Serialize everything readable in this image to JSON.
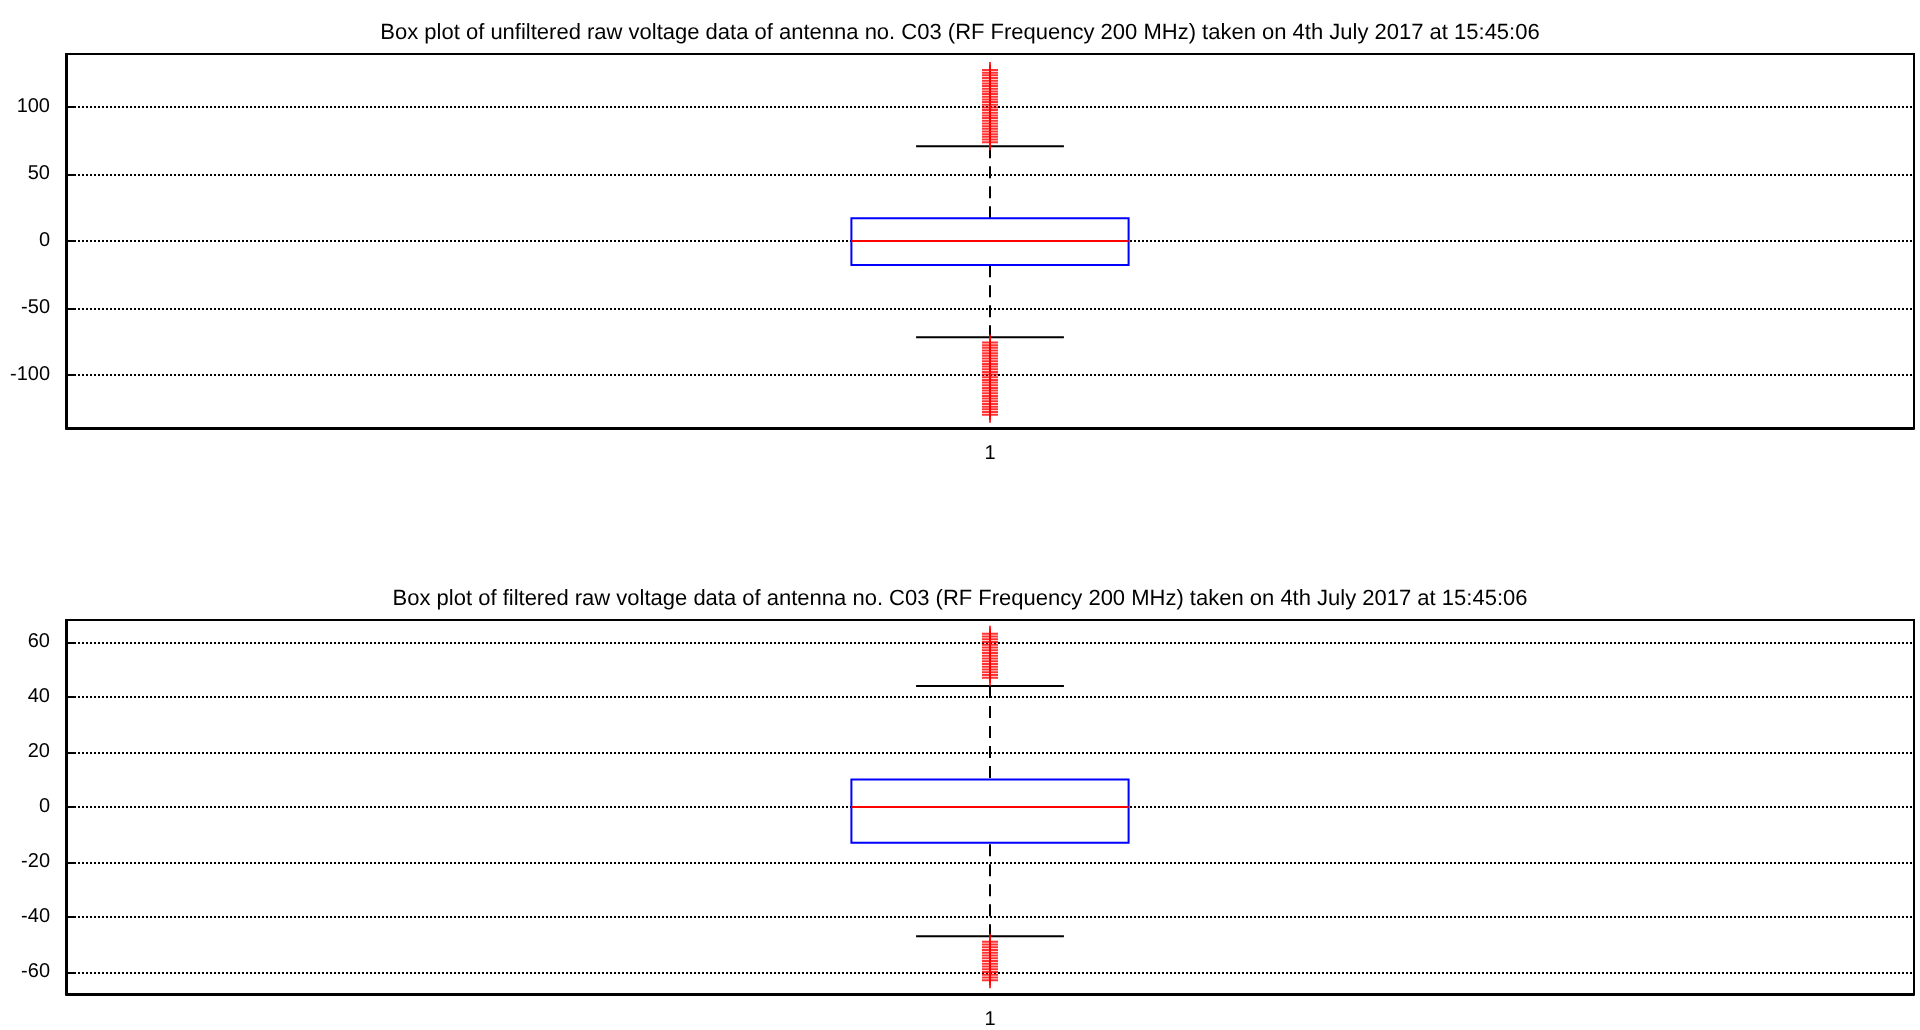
{
  "chart_data": [
    {
      "type": "box",
      "title": "Box plot of unfiltered raw voltage data of antenna no. C03 (RF Frequency 200 MHz) taken on 4th July 2017 at 15:45:06",
      "categories": [
        "1"
      ],
      "ylim": [
        -140,
        140
      ],
      "yticks": [
        -100,
        -50,
        0,
        50,
        100
      ],
      "grid": "y",
      "marker": "cross",
      "series": [
        {
          "color": "#0000ff",
          "boxes": [
            {
              "low": -72,
              "q1": -18,
              "median": 0,
              "q3": 17,
              "high": 71,
              "outliers": [
                74,
                76,
                78,
                80,
                82,
                84,
                86,
                88,
                90,
                92,
                94,
                96,
                98,
                100,
                102,
                104,
                106,
                108,
                110,
                112,
                114,
                116,
                118,
                120,
                122,
                124,
                126,
                128,
                -76,
                -78,
                -80,
                -82,
                -84,
                -86,
                -88,
                -90,
                -92,
                -94,
                -96,
                -98,
                -100,
                -102,
                -104,
                -106,
                -108,
                -110,
                -112,
                -114,
                -116,
                -118,
                -120,
                -122,
                -124,
                -126,
                -128,
                -130
              ]
            }
          ]
        }
      ]
    },
    {
      "type": "box",
      "title": "Box plot of filtered raw voltage data of antenna no. C03 (RF Frequency 200 MHz) taken on 4th July 2017 at 15:45:06",
      "categories": [
        "1"
      ],
      "ylim": [
        -68,
        68
      ],
      "yticks": [
        -60,
        -40,
        -20,
        0,
        20,
        40,
        60
      ],
      "grid": "y",
      "marker": "cross",
      "series": [
        {
          "color": "#0000ff",
          "boxes": [
            {
              "low": -47,
              "q1": -13,
              "median": 0,
              "q3": 10,
              "high": 44,
              "outliers": [
                47,
                48,
                49,
                50,
                51,
                52,
                53,
                54,
                55,
                56,
                57,
                58,
                59,
                60,
                61,
                62,
                63,
                -49,
                -50,
                -51,
                -52,
                -53,
                -54,
                -55,
                -56,
                -57,
                -58,
                -59,
                -60,
                -61,
                -62,
                -63
              ]
            }
          ]
        }
      ]
    }
  ]
}
